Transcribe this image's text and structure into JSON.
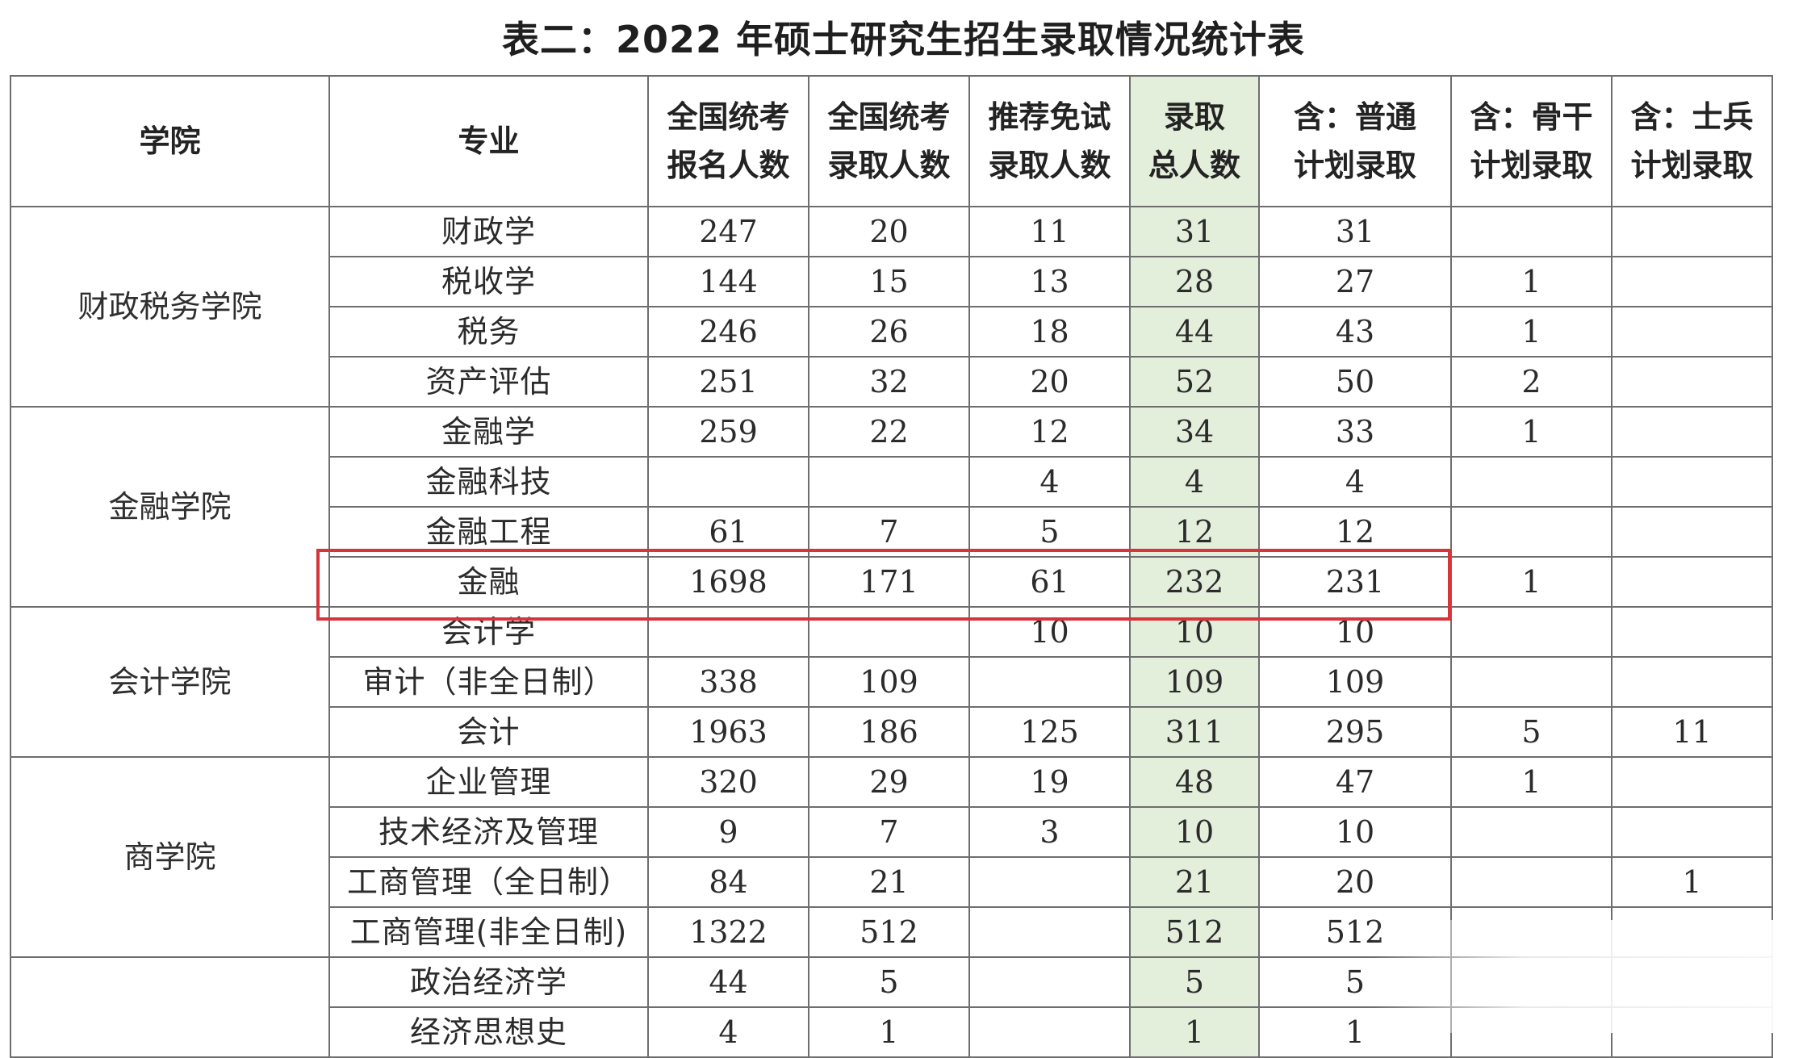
{
  "title": "表二：2022 年硕士研究生招生录取情况统计表",
  "header": {
    "college": "学院",
    "major": "专业",
    "nat_apply": [
      "全国统考",
      "报名人数"
    ],
    "nat_admit": [
      "全国统考",
      "录取人数"
    ],
    "rec_admit": [
      "推荐免试",
      "录取人数"
    ],
    "total": [
      "录取",
      "总人数"
    ],
    "plan_normal": [
      "含：普通",
      "计划录取"
    ],
    "plan_backbone": [
      "含：骨干",
      "计划录取"
    ],
    "plan_soldier": [
      "含：士兵",
      "计划录取"
    ]
  },
  "groups": [
    {
      "college": "财政税务学院",
      "rows": [
        {
          "major": "财政学",
          "nat_apply": "247",
          "nat_admit": "20",
          "rec_admit": "11",
          "total": "31",
          "plan_normal": "31",
          "plan_backbone": "",
          "plan_soldier": ""
        },
        {
          "major": "税收学",
          "nat_apply": "144",
          "nat_admit": "15",
          "rec_admit": "13",
          "total": "28",
          "plan_normal": "27",
          "plan_backbone": "1",
          "plan_soldier": ""
        },
        {
          "major": "税务",
          "nat_apply": "246",
          "nat_admit": "26",
          "rec_admit": "18",
          "total": "44",
          "plan_normal": "43",
          "plan_backbone": "1",
          "plan_soldier": ""
        },
        {
          "major": "资产评估",
          "nat_apply": "251",
          "nat_admit": "32",
          "rec_admit": "20",
          "total": "52",
          "plan_normal": "50",
          "plan_backbone": "2",
          "plan_soldier": ""
        }
      ]
    },
    {
      "college": "金融学院",
      "rows": [
        {
          "major": "金融学",
          "nat_apply": "259",
          "nat_admit": "22",
          "rec_admit": "12",
          "total": "34",
          "plan_normal": "33",
          "plan_backbone": "1",
          "plan_soldier": ""
        },
        {
          "major": "金融科技",
          "nat_apply": "",
          "nat_admit": "",
          "rec_admit": "4",
          "total": "4",
          "plan_normal": "4",
          "plan_backbone": "",
          "plan_soldier": ""
        },
        {
          "major": "金融工程",
          "nat_apply": "61",
          "nat_admit": "7",
          "rec_admit": "5",
          "total": "12",
          "plan_normal": "12",
          "plan_backbone": "",
          "plan_soldier": ""
        },
        {
          "major": "金融",
          "nat_apply": "1698",
          "nat_admit": "171",
          "rec_admit": "61",
          "total": "232",
          "plan_normal": "231",
          "plan_backbone": "1",
          "plan_soldier": ""
        }
      ]
    },
    {
      "college": "会计学院",
      "rows": [
        {
          "major": "会计学",
          "nat_apply": "",
          "nat_admit": "",
          "rec_admit": "10",
          "total": "10",
          "plan_normal": "10",
          "plan_backbone": "",
          "plan_soldier": ""
        },
        {
          "major": "审计（非全日制）",
          "nat_apply": "338",
          "nat_admit": "109",
          "rec_admit": "",
          "total": "109",
          "plan_normal": "109",
          "plan_backbone": "",
          "plan_soldier": ""
        },
        {
          "major": "会计",
          "nat_apply": "1963",
          "nat_admit": "186",
          "rec_admit": "125",
          "total": "311",
          "plan_normal": "295",
          "plan_backbone": "5",
          "plan_soldier": "11"
        }
      ]
    },
    {
      "college": "商学院",
      "rows": [
        {
          "major": "企业管理",
          "nat_apply": "320",
          "nat_admit": "29",
          "rec_admit": "19",
          "total": "48",
          "plan_normal": "47",
          "plan_backbone": "1",
          "plan_soldier": ""
        },
        {
          "major": "技术经济及管理",
          "nat_apply": "9",
          "nat_admit": "7",
          "rec_admit": "3",
          "total": "10",
          "plan_normal": "10",
          "plan_backbone": "",
          "plan_soldier": ""
        },
        {
          "major": "工商管理（全日制）",
          "nat_apply": "84",
          "nat_admit": "21",
          "rec_admit": "",
          "total": "21",
          "plan_normal": "20",
          "plan_backbone": "",
          "plan_soldier": "1"
        },
        {
          "major": "工商管理(非全日制)",
          "nat_apply": "1322",
          "nat_admit": "512",
          "rec_admit": "",
          "total": "512",
          "plan_normal": "512",
          "plan_backbone": "",
          "plan_soldier": ""
        }
      ]
    },
    {
      "college": "",
      "rows": [
        {
          "major": "政治经济学",
          "nat_apply": "44",
          "nat_admit": "5",
          "rec_admit": "",
          "total": "5",
          "plan_normal": "5",
          "plan_backbone": "",
          "plan_soldier": ""
        },
        {
          "major": "经济思想史",
          "nat_apply": "4",
          "nat_admit": "1",
          "rec_admit": "",
          "total": "1",
          "plan_normal": "1",
          "plan_backbone": "",
          "plan_soldier": ""
        }
      ]
    }
  ],
  "colors": {
    "total_column_bg": "#e3eedb",
    "highlight_border": "#d8343c",
    "grid_line": "#6e6e6e"
  }
}
